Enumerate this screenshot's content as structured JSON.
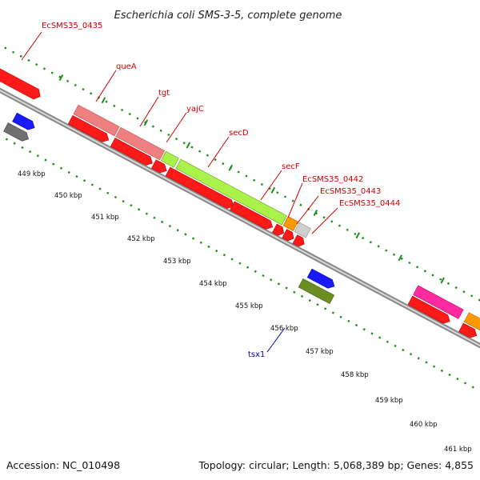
{
  "title": "Escherichia coli SMS-3-5, complete genome",
  "footer": {
    "accession": "Accession: NC_010498",
    "topology": "Topology: circular; Length: 5,068,389 bp; Genes: 4,855"
  },
  "colors": {
    "cds": "#ff0000",
    "backbone": "#8c8c8c",
    "ticks": "#1e8c1e",
    "label_red": "#cc0000",
    "label_blue": "#0000aa"
  },
  "gene_labels": [
    {
      "name": "EcSMS35_0435"
    },
    {
      "name": "queA"
    },
    {
      "name": "tgt"
    },
    {
      "name": "yajC"
    },
    {
      "name": "secD"
    },
    {
      "name": "secF"
    },
    {
      "name": "EcSMS35_0442"
    },
    {
      "name": "EcSMS35_0443"
    },
    {
      "name": "EcSMS35_0444"
    },
    {
      "name": "tsx1"
    }
  ],
  "kbp_labels": [
    "449 kbp",
    "450 kbp",
    "451 kbp",
    "452 kbp",
    "453 kbp",
    "454 kbp",
    "455 kbp",
    "456 kbp",
    "457 kbp",
    "458 kbp",
    "459 kbp",
    "460 kbp",
    "461 kbp"
  ]
}
